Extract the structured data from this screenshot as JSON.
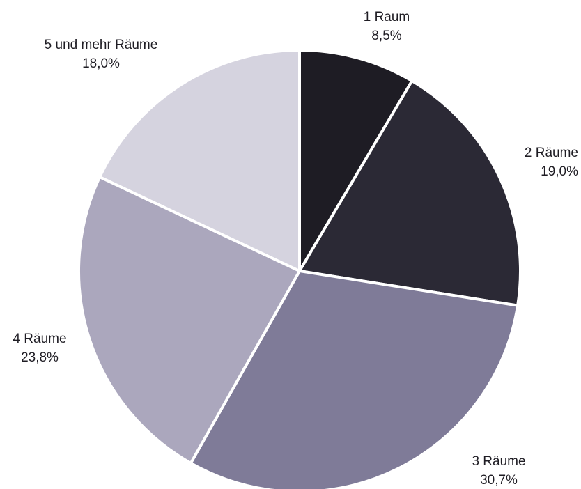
{
  "chart_data": {
    "type": "pie",
    "title": "",
    "start_angle_deg": 0,
    "direction": "clockwise",
    "slices": [
      {
        "label": "1 Raum",
        "value": 8.5,
        "value_text": "8,5%",
        "color": "#1e1c24"
      },
      {
        "label": "2 Räume",
        "value": 19.0,
        "value_text": "19,0%",
        "color": "#2b2935"
      },
      {
        "label": "3 Räume",
        "value": 30.7,
        "value_text": "30,7%",
        "color": "#7f7b98"
      },
      {
        "label": "4 Räume",
        "value": 23.8,
        "value_text": "23,8%",
        "color": "#aba7bd"
      },
      {
        "label": "5 und mehr Räume",
        "value": 18.0,
        "value_text": "18,0%",
        "color": "#d5d3df"
      }
    ]
  }
}
